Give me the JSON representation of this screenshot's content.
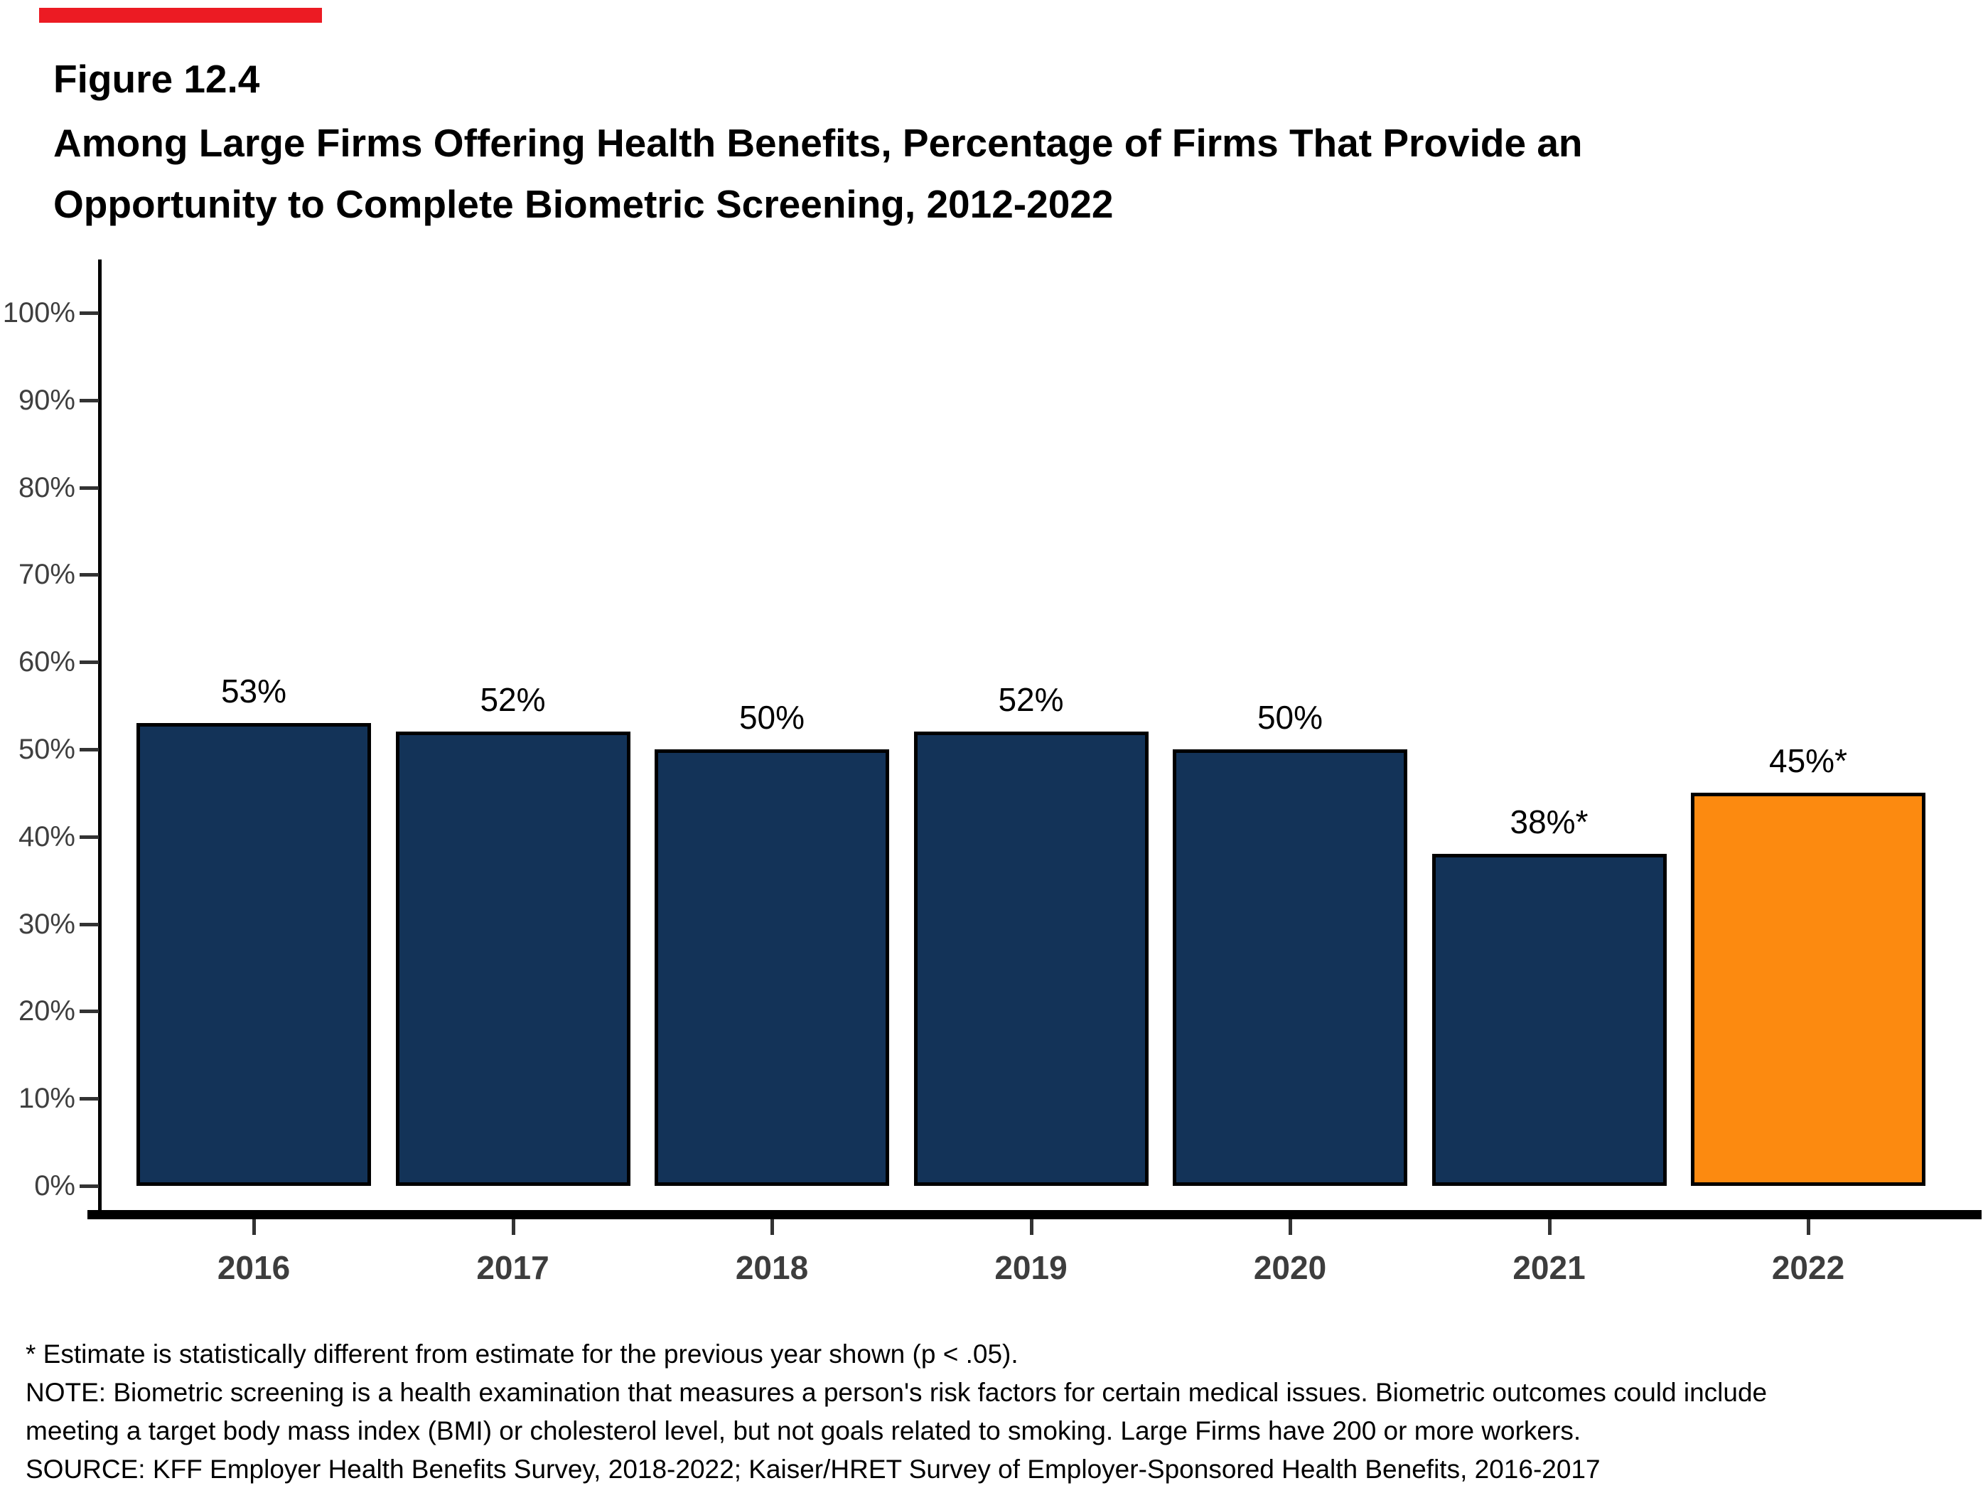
{
  "accent_color": "#ec1b23",
  "header": {
    "figure_label": "Figure 12.4",
    "title_lines": [
      "Among Large Firms Offering Health Benefits, Percentage of Firms That Provide an",
      "Opportunity to Complete Biometric Screening, 2012-2022"
    ]
  },
  "chart_data": {
    "type": "bar",
    "title": "Among Large Firms Offering Health Benefits, Percentage of Firms That Provide an Opportunity to Complete Biometric Screening, 2012-2022",
    "categories": [
      "2016",
      "2017",
      "2018",
      "2019",
      "2020",
      "2021",
      "2022"
    ],
    "values": [
      53,
      52,
      50,
      52,
      50,
      38,
      45
    ],
    "bar_labels": [
      "53%",
      "52%",
      "50%",
      "52%",
      "50%",
      "38%*",
      "45%*"
    ],
    "xlabel": "",
    "ylabel": "",
    "ylim": [
      0,
      100
    ],
    "ytick_interval": 10,
    "ytick_labels": [
      "0%",
      "10%",
      "20%",
      "30%",
      "40%",
      "50%",
      "60%",
      "70%",
      "80%",
      "90%",
      "100%"
    ],
    "grid": false,
    "legend_position": "none",
    "bar_color_default": "#133358",
    "bar_color_highlight": "#fc8a10",
    "highlight_index": 6,
    "bar_border_color": "#000000"
  },
  "footer": {
    "lines": [
      "* Estimate is statistically different from estimate for the previous year shown (p < .05).",
      "NOTE: Biometric screening is a health examination that measures a person's risk factors for certain medical issues. Biometric outcomes could include",
      "meeting a target body mass index (BMI) or cholesterol level, but not goals related to smoking. Large Firms have 200 or more workers.",
      "SOURCE: KFF Employer Health Benefits Survey, 2018-2022; Kaiser/HRET Survey of Employer-Sponsored Health Benefits, 2016-2017"
    ]
  }
}
